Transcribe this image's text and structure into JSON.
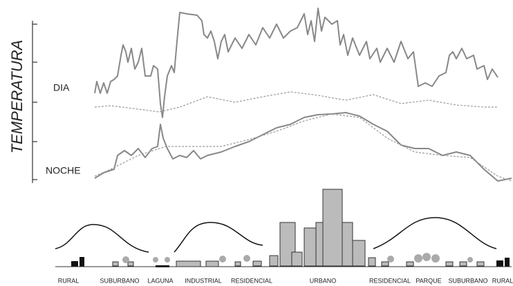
{
  "axis_label": "TEMPERATURA",
  "curve_labels": {
    "day": "DIA",
    "night": "NOCHE"
  },
  "zones": [
    "RURAL",
    "SUBURBANO",
    "LAGUNA",
    "INDUSTRIAL",
    "RESIDENCIAL",
    "URBANO",
    "RESIDENCIAL",
    "PARQUE",
    "SUBURBANO",
    "RURAL"
  ]
}
